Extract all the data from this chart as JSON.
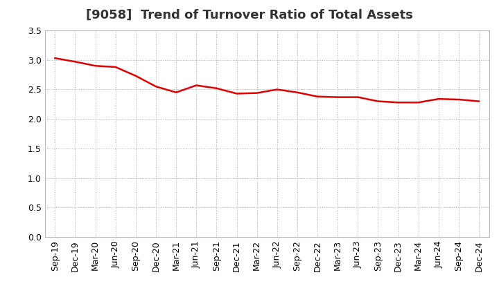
{
  "title": "[9058]  Trend of Turnover Ratio of Total Assets",
  "x_labels": [
    "Sep-19",
    "Dec-19",
    "Mar-20",
    "Jun-20",
    "Sep-20",
    "Dec-20",
    "Mar-21",
    "Jun-21",
    "Sep-21",
    "Dec-21",
    "Mar-22",
    "Jun-22",
    "Sep-22",
    "Dec-22",
    "Mar-23",
    "Jun-23",
    "Sep-23",
    "Dec-23",
    "Mar-24",
    "Jun-24",
    "Sep-24",
    "Dec-24"
  ],
  "y_values": [
    3.03,
    2.97,
    2.9,
    2.88,
    2.73,
    2.55,
    2.45,
    2.57,
    2.52,
    2.43,
    2.44,
    2.5,
    2.45,
    2.38,
    2.37,
    2.37,
    2.3,
    2.28,
    2.28,
    2.34,
    2.33,
    2.3
  ],
  "line_color": "#e00000",
  "line_width": 1.8,
  "ylim": [
    0.0,
    3.5
  ],
  "yticks": [
    0.0,
    0.5,
    1.0,
    1.5,
    2.0,
    2.5,
    3.0,
    3.5
  ],
  "grid_color": "#aaaaaa",
  "background_color": "#ffffff",
  "title_fontsize": 13,
  "tick_fontsize": 9,
  "title_color": "#333333"
}
